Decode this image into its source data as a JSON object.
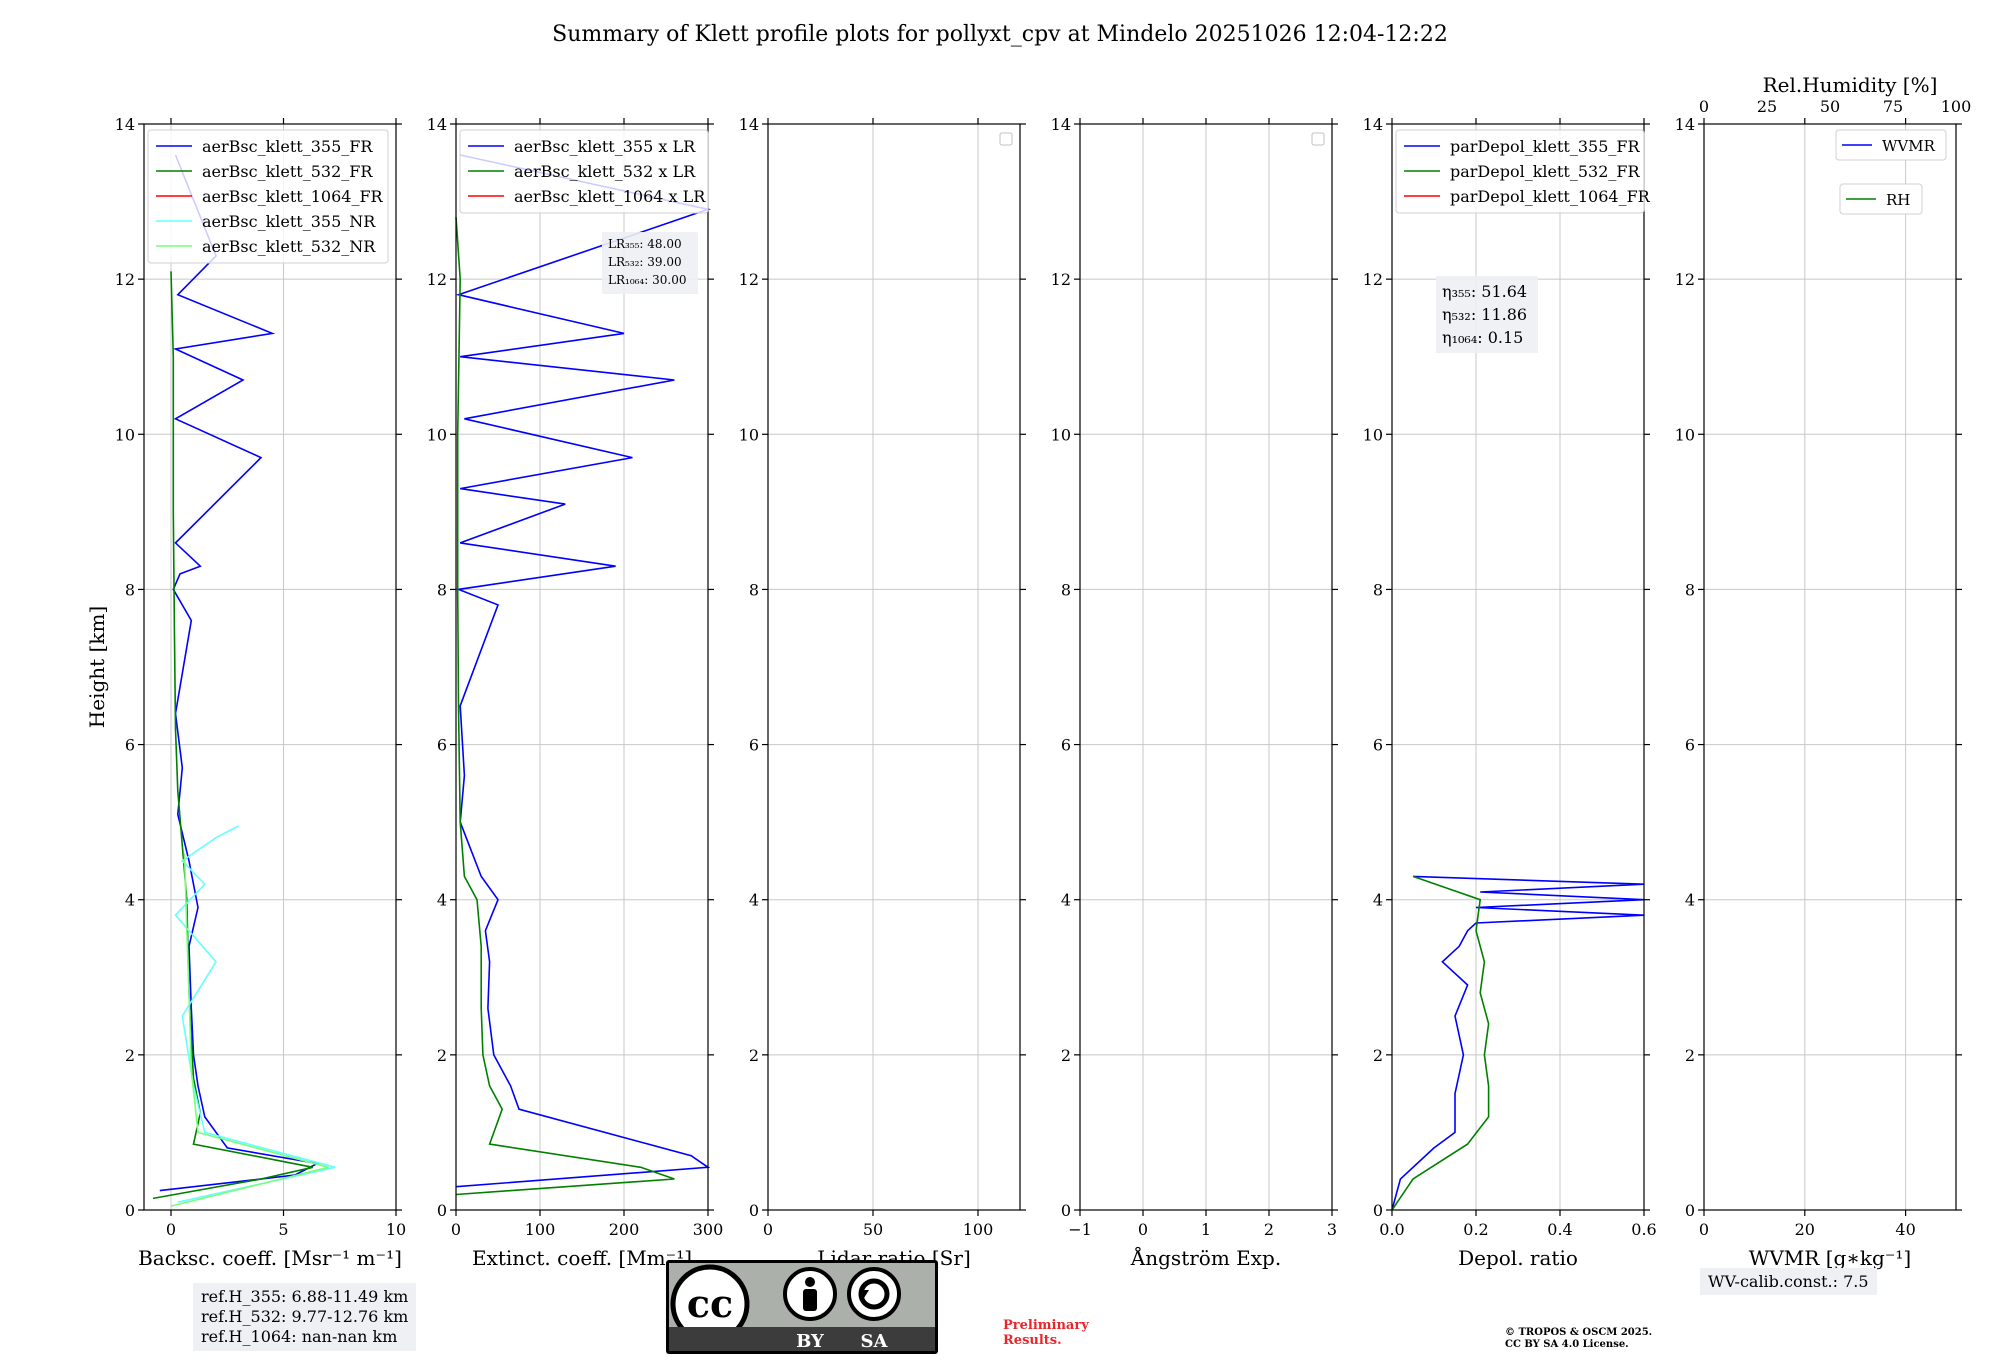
{
  "title": "Summary of Klett profile plots for pollyxt_cpv at Mindelo 20251026 12:04-12:22",
  "colors": {
    "c355": "#0000ff",
    "c532": "#008000",
    "c1064": "#ff0000",
    "c355nr": "#66ffff",
    "c532nr": "#7cfc7c",
    "grid": "#c8c8c8"
  },
  "y_axis": {
    "label": "Height [km]",
    "range": [
      0,
      14
    ],
    "ticks": [
      "0",
      "2",
      "4",
      "6",
      "8",
      "10",
      "12",
      "14"
    ]
  },
  "chart_data": [
    {
      "id": "bsc",
      "type": "line",
      "xlabel": "Backsc. coeff. [Msr⁻¹ m⁻¹]",
      "xlim": [
        -1.2,
        10
      ],
      "xticks": [
        0,
        5,
        10
      ],
      "xtick_labels": [
        "0",
        "5",
        "10"
      ],
      "legend": [
        "aerBsc_klett_355_FR",
        "aerBsc_klett_532_FR",
        "aerBsc_klett_1064_FR",
        "aerBsc_klett_355_NR",
        "aerBsc_klett_532_NR"
      ],
      "series": [
        {
          "name": "aerBsc_klett_355_FR",
          "color": "c355",
          "x": [
            -0.5,
            5.5,
            6.5,
            2.5,
            1.5,
            1.2,
            1.0,
            0.9,
            0.8,
            1.2,
            0.8,
            0.3,
            0.5,
            0.2,
            0.9,
            0.1,
            0.4,
            1.3,
            0.2,
            4.0,
            0.2,
            3.2,
            0.2,
            4.5,
            0.3,
            2.0,
            0.2
          ],
          "y": [
            0.25,
            0.45,
            0.6,
            0.8,
            1.2,
            1.6,
            2.0,
            2.6,
            3.4,
            3.9,
            4.5,
            5.1,
            5.7,
            6.4,
            7.6,
            8.0,
            8.2,
            8.3,
            8.6,
            9.7,
            10.2,
            10.7,
            11.1,
            11.3,
            11.8,
            12.3,
            13.6
          ]
        },
        {
          "name": "aerBsc_klett_532_FR",
          "color": "c532",
          "x": [
            -0.8,
            4.0,
            6.3,
            1.0,
            1.3,
            1.0,
            0.9,
            0.8,
            0.75,
            0.7,
            0.5,
            0.3,
            0.2,
            0.15,
            0.1,
            0.1,
            0.0
          ],
          "y": [
            0.15,
            0.4,
            0.55,
            0.85,
            1.25,
            1.7,
            2.2,
            2.8,
            3.4,
            4.0,
            4.7,
            5.4,
            6.2,
            7.5,
            9.0,
            11.0,
            12.1
          ]
        },
        {
          "name": "aerBsc_klett_1064_FR",
          "color": "c1064",
          "x": [],
          "y": []
        },
        {
          "name": "aerBsc_klett_355_NR",
          "color": "c355nr",
          "x": [
            0.3,
            7.3,
            1.5,
            1.0,
            0.5,
            2.0,
            0.2,
            1.5,
            0.5,
            2.0,
            3.0
          ],
          "y": [
            0.1,
            0.55,
            1.0,
            1.6,
            2.5,
            3.2,
            3.8,
            4.2,
            4.5,
            4.8,
            4.95
          ]
        },
        {
          "name": "aerBsc_klett_532_NR",
          "color": "c532nr",
          "x": [
            0.0,
            7.0,
            1.2,
            0.9,
            0.8,
            0.7,
            0.6
          ],
          "y": [
            0.05,
            0.55,
            1.0,
            1.8,
            2.8,
            3.6,
            4.6
          ]
        }
      ],
      "text_box": {
        "lines": []
      }
    },
    {
      "id": "ext",
      "type": "line",
      "xlabel": "Extinct. coeff. [Mm⁻¹]",
      "xlim": [
        0,
        300
      ],
      "xticks": [
        0,
        100,
        200,
        300
      ],
      "xtick_labels": [
        "0",
        "100",
        "200",
        "300"
      ],
      "legend": [
        "aerBsc_klett_355 x LR",
        "aerBsc_klett_532 x LR",
        "aerBsc_klett_1064 x LR"
      ],
      "series": [
        {
          "name": "aerBsc_klett_355 x LR",
          "color": "c355",
          "x": [
            0,
            300,
            280,
            75,
            65,
            45,
            38,
            40,
            35,
            50,
            30,
            5,
            10,
            5,
            50,
            3,
            190,
            5,
            130,
            5,
            210,
            10,
            260,
            5,
            200,
            3,
            300,
            5
          ],
          "y": [
            0.3,
            0.55,
            0.7,
            1.3,
            1.6,
            2.0,
            2.6,
            3.2,
            3.6,
            4.0,
            4.3,
            5.0,
            5.6,
            6.5,
            7.8,
            8.0,
            8.3,
            8.6,
            9.1,
            9.3,
            9.7,
            10.2,
            10.7,
            11.0,
            11.3,
            11.8,
            12.9,
            13.6
          ]
        },
        {
          "name": "aerBsc_klett_532 x LR",
          "color": "c532",
          "x": [
            0,
            260,
            220,
            40,
            55,
            40,
            32,
            30,
            30,
            25,
            10,
            5,
            3,
            2,
            2,
            5,
            0
          ],
          "y": [
            0.2,
            0.4,
            0.55,
            0.85,
            1.3,
            1.6,
            2.0,
            2.6,
            3.4,
            4.0,
            4.3,
            5.0,
            6.5,
            8.0,
            10.0,
            12.0,
            12.8
          ]
        },
        {
          "name": "aerBsc_klett_1064 x LR",
          "color": "c1064",
          "x": [],
          "y": []
        }
      ],
      "text_box": {
        "lines": [
          "LR₃₅₅: 48.00",
          "LR₅₃₂: 39.00",
          "LR₁₀₆₄: 30.00"
        ]
      }
    },
    {
      "id": "lr",
      "type": "line",
      "xlabel": "Lidar ratio [Sr]",
      "xlim": [
        0,
        120
      ],
      "xticks": [
        0,
        50,
        100
      ],
      "xtick_labels": [
        "0",
        "50",
        "100"
      ],
      "legend": [],
      "series": [],
      "text_box": {
        "lines": []
      }
    },
    {
      "id": "ae",
      "type": "line",
      "xlabel": "Ångström Exp.",
      "xlim": [
        -1,
        3
      ],
      "xticks": [
        -1,
        0,
        1,
        2,
        3
      ],
      "xtick_labels": [
        "−1",
        "0",
        "1",
        "2",
        "3"
      ],
      "legend": [],
      "series": [],
      "text_box": {
        "lines": []
      }
    },
    {
      "id": "depol",
      "type": "line",
      "xlabel": "Depol. ratio",
      "xlim": [
        0,
        0.6
      ],
      "xticks": [
        0,
        0.2,
        0.4,
        0.6
      ],
      "xtick_labels": [
        "0.0",
        "0.2",
        "0.4",
        "0.6"
      ],
      "legend": [
        "parDepol_klett_355_FR",
        "parDepol_klett_532_FR",
        "parDepol_klett_1064_FR"
      ],
      "series": [
        {
          "name": "parDepol_klett_355_FR",
          "color": "c355",
          "x": [
            0.0,
            0.02,
            0.1,
            0.15,
            0.15,
            0.17,
            0.15,
            0.18,
            0.12,
            0.16,
            0.18,
            0.2,
            0.6,
            0.2,
            0.6,
            0.21,
            0.6,
            0.05
          ],
          "y": [
            0.0,
            0.4,
            0.8,
            1.0,
            1.5,
            2.0,
            2.5,
            2.9,
            3.2,
            3.4,
            3.6,
            3.7,
            3.8,
            3.9,
            4.0,
            4.1,
            4.2,
            4.3
          ]
        },
        {
          "name": "parDepol_klett_532_FR",
          "color": "c532",
          "x": [
            0.0,
            0.05,
            0.18,
            0.23,
            0.23,
            0.22,
            0.23,
            0.21,
            0.22,
            0.2,
            0.21,
            0.05
          ],
          "y": [
            0.0,
            0.4,
            0.85,
            1.2,
            1.6,
            2.0,
            2.4,
            2.8,
            3.2,
            3.6,
            4.0,
            4.3
          ]
        },
        {
          "name": "parDepol_klett_1064_FR",
          "color": "c1064",
          "x": [],
          "y": []
        }
      ],
      "text_box": {
        "lines": [
          "η₃₅₅: 51.64",
          "η₅₃₂: 11.86",
          "η₁₀₆₄: 0.15"
        ]
      }
    },
    {
      "id": "wv",
      "type": "line",
      "xlabel": "WVMR [g∗kg⁻¹]",
      "xlim": [
        0,
        50
      ],
      "xticks": [
        0,
        20,
        40
      ],
      "xtick_labels": [
        "0",
        "20",
        "40"
      ],
      "top_axis": {
        "label": "Rel.Humidity [%]",
        "range": [
          0,
          100
        ],
        "ticks": [
          0,
          25,
          50,
          75,
          100
        ],
        "tick_labels": [
          "0",
          "25",
          "50",
          "75",
          "100"
        ]
      },
      "legend": [
        "WVMR",
        "RH"
      ],
      "series": [],
      "text_box": {
        "lines": []
      }
    }
  ],
  "footer": {
    "ref_heights": [
      "ref.H_355: 6.88-11.49 km",
      "ref.H_532: 9.77-12.76 km",
      "ref.H_1064: nan-nan km"
    ],
    "wv_calib": "WV-calib.const.: 7.5",
    "license": {
      "by": "BY",
      "sa": "SA",
      "cc": "cc"
    },
    "preliminary": [
      "Preliminary",
      "Results."
    ],
    "copyright": [
      "© TROPOS & OSCM 2025.",
      "CC BY SA 4.0 License."
    ]
  }
}
